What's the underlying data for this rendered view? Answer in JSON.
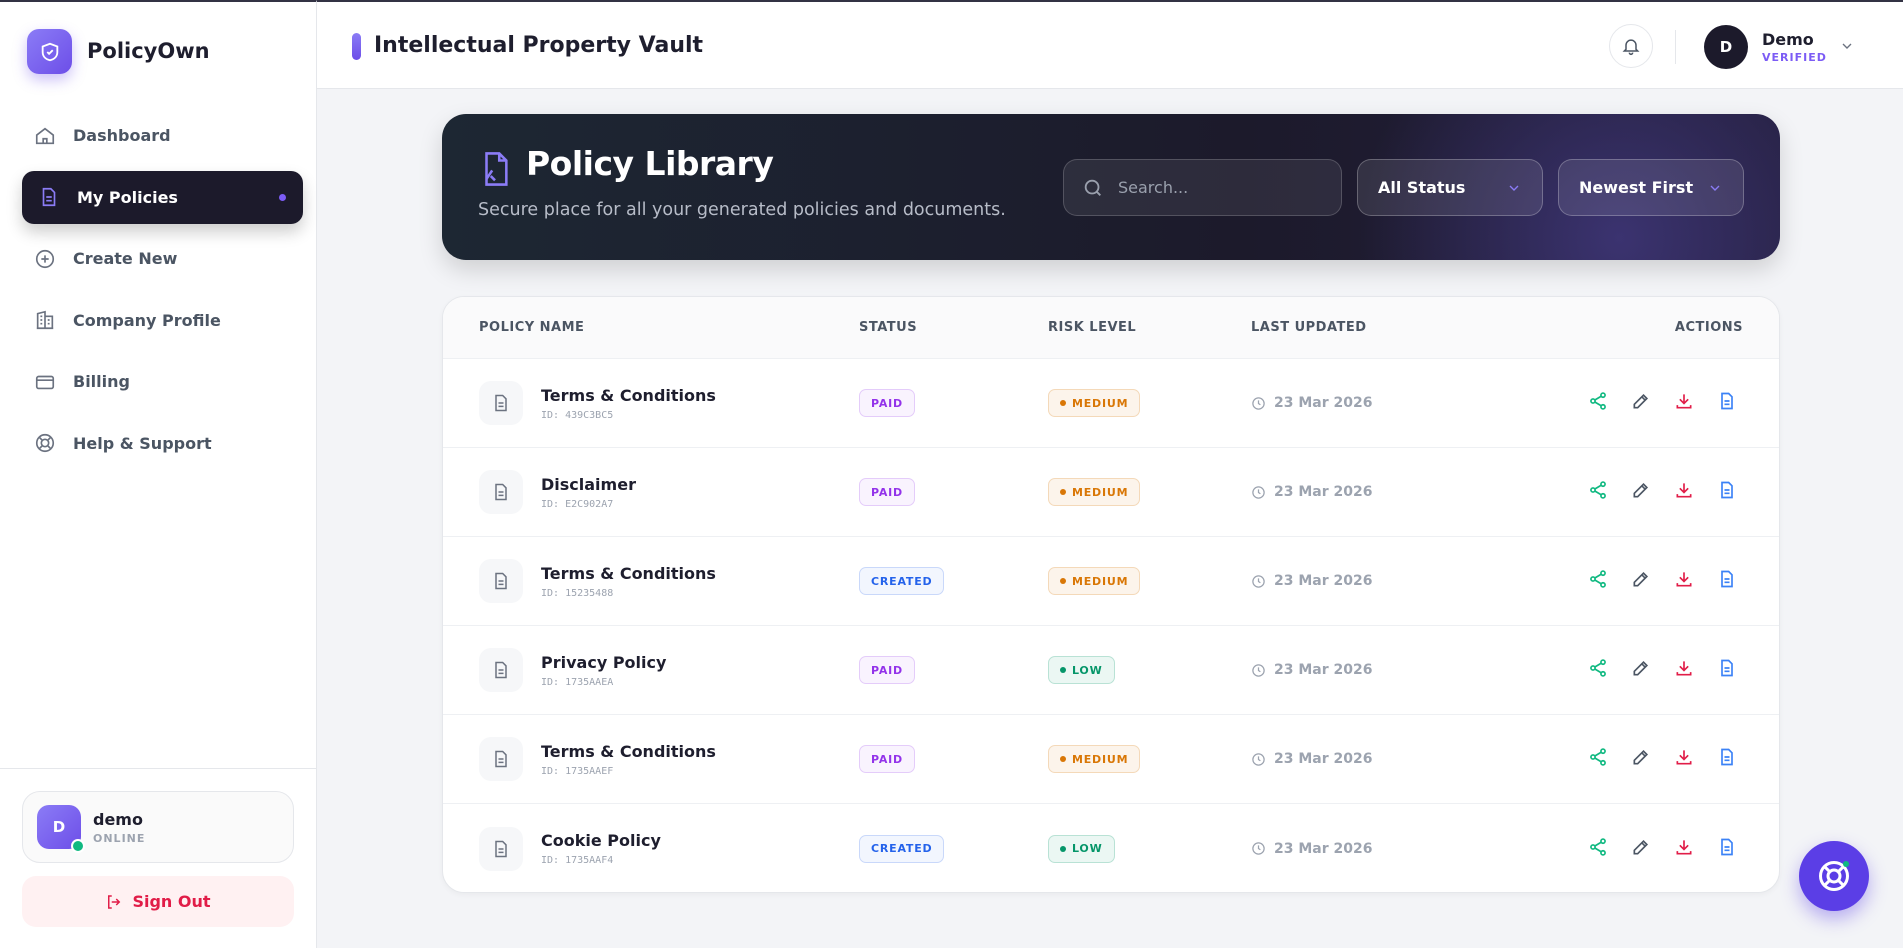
{
  "sidebar": {
    "brand": "PolicyOwn",
    "nav": [
      "Dashboard",
      "My Policies",
      "Create New",
      "Company Profile",
      "Billing",
      "Help & Support"
    ],
    "user": {
      "avatar": "D",
      "name": "demo",
      "status": "ONLINE"
    },
    "sign_out": "Sign Out"
  },
  "header": {
    "title": "Intellectual Property Vault",
    "user": {
      "avatar": "D",
      "name": "Demo",
      "status": "VERIFIED"
    }
  },
  "library": {
    "title": "Policy Library",
    "subtitle": "Secure place for all your generated policies and documents.",
    "search_placeholder": "Search...",
    "status_filter": "All Status",
    "sort": "Newest First"
  },
  "table": {
    "columns": [
      "POLICY NAME",
      "STATUS",
      "RISK LEVEL",
      "LAST UPDATED",
      "ACTIONS"
    ],
    "rows": [
      {
        "name": "Terms & Conditions",
        "id": "ID: 439C3BC5",
        "status": "PAID",
        "status_color": "#9333ea",
        "risk": "MEDIUM",
        "risk_color": "#d97706",
        "updated": "23 Mar 2026"
      },
      {
        "name": "Disclaimer",
        "id": "ID: E2C902A7",
        "status": "PAID",
        "status_color": "#9333ea",
        "risk": "MEDIUM",
        "risk_color": "#d97706",
        "updated": "23 Mar 2026"
      },
      {
        "name": "Terms & Conditions",
        "id": "ID: 15235488",
        "status": "CREATED",
        "status_color": "#2563eb",
        "risk": "MEDIUM",
        "risk_color": "#d97706",
        "updated": "23 Mar 2026"
      },
      {
        "name": "Privacy Policy",
        "id": "ID: 1735AAEA",
        "status": "PAID",
        "status_color": "#9333ea",
        "risk": "LOW",
        "risk_color": "#059669",
        "updated": "23 Mar 2026"
      },
      {
        "name": "Terms & Conditions",
        "id": "ID: 1735AAEF",
        "status": "PAID",
        "status_color": "#9333ea",
        "risk": "MEDIUM",
        "risk_color": "#d97706",
        "updated": "23 Mar 2026"
      },
      {
        "name": "Cookie Policy",
        "id": "ID: 1735AAF4",
        "status": "CREATED",
        "status_color": "#2563eb",
        "risk": "LOW",
        "risk_color": "#059669",
        "updated": "23 Mar 2026"
      }
    ]
  }
}
